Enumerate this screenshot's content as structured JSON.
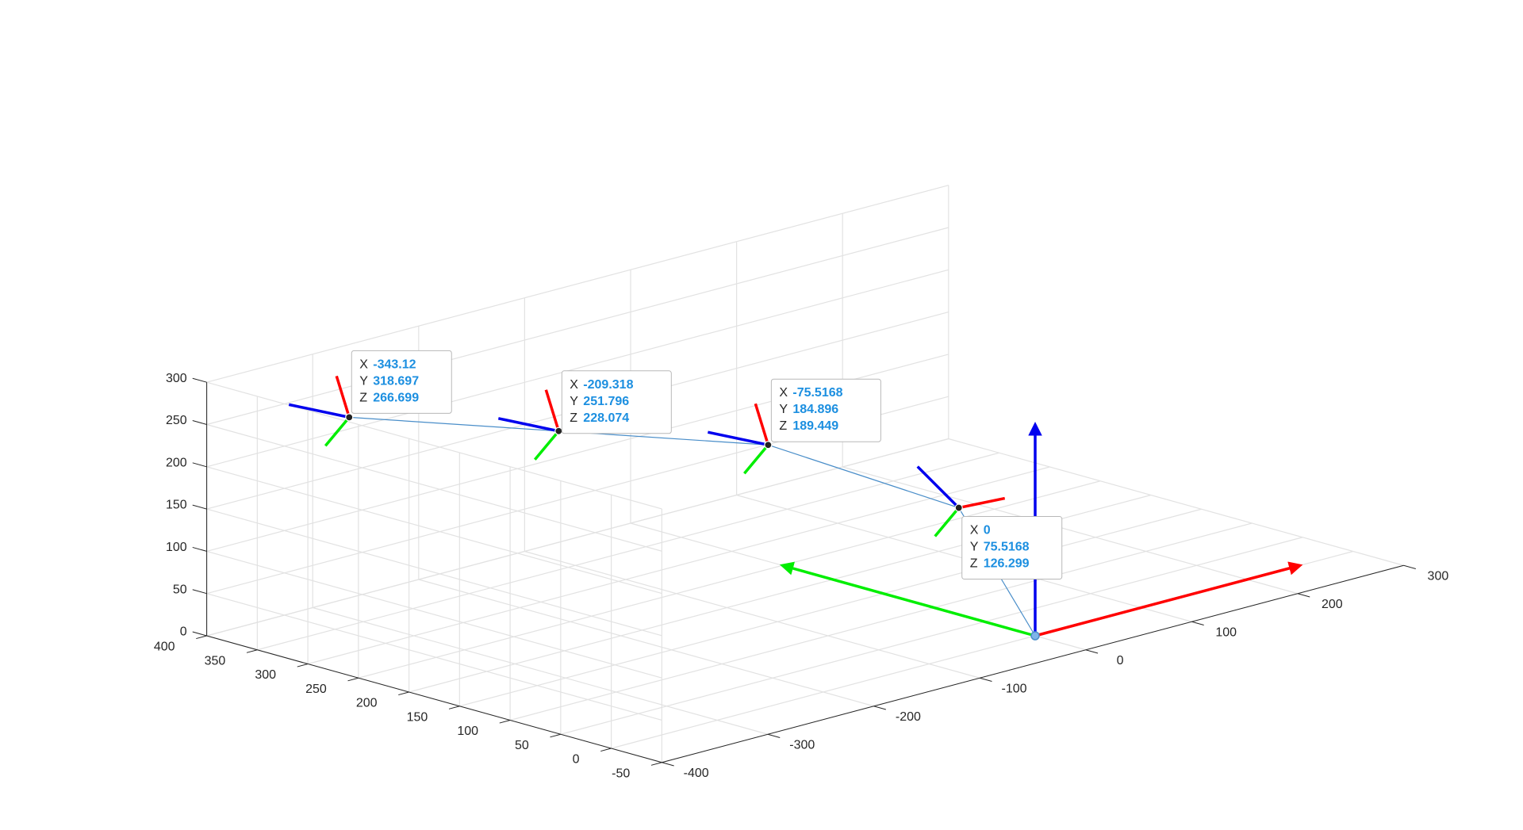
{
  "chart_data": {
    "type": "line",
    "title": "",
    "xlabel": "",
    "ylabel": "",
    "zlabel": "",
    "grid": true,
    "xlim": [
      -400,
      300
    ],
    "ylim": [
      -50,
      400
    ],
    "zlim": [
      0,
      300
    ],
    "x_ticks": [
      "-400",
      "-300",
      "-200",
      "-100",
      "0",
      "100",
      "200",
      "300"
    ],
    "y_ticks": [
      "-50",
      "0",
      "50",
      "100",
      "150",
      "200",
      "250",
      "300",
      "350",
      "400"
    ],
    "z_ticks": [
      "0",
      "50",
      "100",
      "150",
      "200",
      "250",
      "300"
    ],
    "series": [
      {
        "type": "line3d",
        "color": "#4a8ec9",
        "points": [
          {
            "x": 0,
            "y": 0,
            "z": 0
          },
          {
            "x": 0,
            "y": 75.5168,
            "z": 126.299
          },
          {
            "x": -75.5168,
            "y": 184.896,
            "z": 189.449
          },
          {
            "x": -209.318,
            "y": 251.796,
            "z": 228.074
          },
          {
            "x": -343.12,
            "y": 318.697,
            "z": 266.699
          }
        ]
      }
    ],
    "datatips": [
      {
        "X": "-343.12",
        "Y": "318.697",
        "Z": "266.699"
      },
      {
        "X": "-209.318",
        "Y": "251.796",
        "Z": "228.074"
      },
      {
        "X": "-75.5168",
        "Y": "184.896",
        "Z": "189.449"
      },
      {
        "X": "0",
        "Y": "75.5168",
        "Z": "126.299"
      }
    ],
    "base_frame_axes": [
      {
        "axis": "x",
        "color": "#ff0000",
        "vector": [
          250,
          0,
          0
        ]
      },
      {
        "axis": "y",
        "color": "#00ee00",
        "vector": [
          0,
          250,
          0
        ]
      },
      {
        "axis": "z",
        "color": "#0000ee",
        "vector": [
          0,
          0,
          250
        ]
      }
    ],
    "axis_colors": {
      "x": "#ff0000",
      "y": "#00ee00",
      "z": "#0000ee"
    },
    "point_marker_color": "#000000"
  }
}
